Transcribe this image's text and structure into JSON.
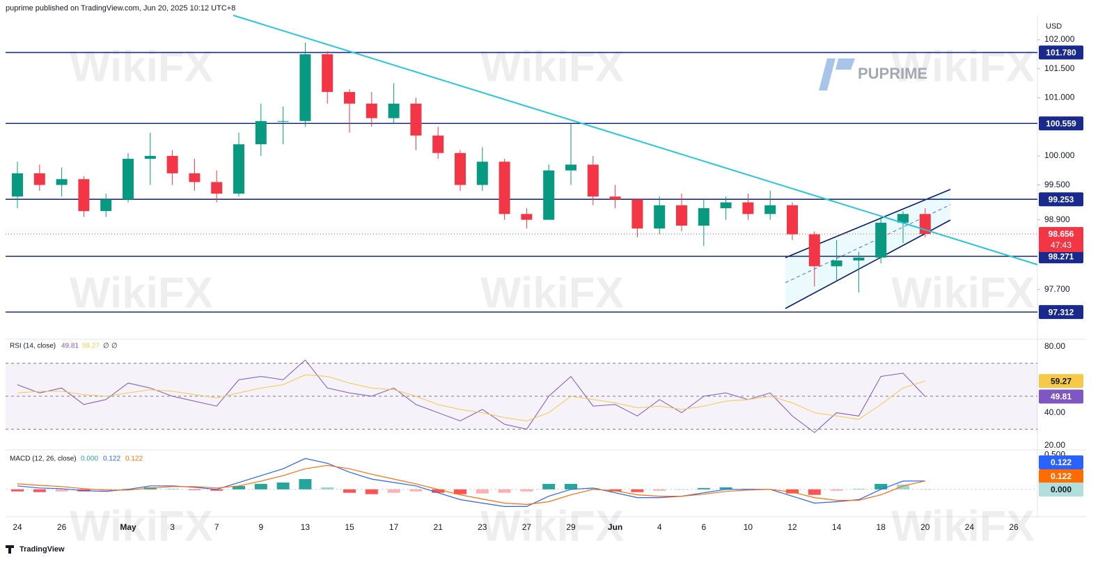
{
  "header": {
    "published": "puprime published on TradingView.com, Jun 20, 2025 10:12 UTC+8",
    "currency": "USD",
    "broker_logo": "PUPRIME",
    "watermark": "WikiFX",
    "footer": "TradingView",
    "countdown": "47:43"
  },
  "chart_data": [
    {
      "type": "candlestick",
      "categories": [
        "24",
        null,
        "26",
        null,
        null,
        "May",
        null,
        "3",
        null,
        "7",
        null,
        "9",
        null,
        "13",
        null,
        "15",
        null,
        "17",
        null,
        "21",
        null,
        "23",
        null,
        "27",
        null,
        "29",
        null,
        "Jun",
        null,
        "4",
        null,
        "6",
        null,
        "10",
        null,
        "12",
        null,
        "14",
        null,
        "18",
        null,
        "20",
        null,
        "24",
        null,
        "26"
      ],
      "open": [
        99.3,
        99.7,
        99.5,
        99.6,
        99.05,
        99.25,
        99.95,
        100.0,
        99.7,
        99.55,
        99.35,
        100.2,
        100.6,
        100.6,
        101.75,
        101.1,
        100.9,
        100.65,
        100.9,
        100.35,
        100.05,
        99.5,
        99.9,
        99.0,
        98.9,
        99.75,
        99.85,
        99.3,
        99.25,
        98.75,
        99.15,
        98.8,
        99.1,
        99.2,
        99.0,
        99.15,
        98.65,
        98.1,
        98.2,
        98.25,
        98.85,
        99.0,
        null,
        null,
        null,
        null
      ],
      "high": [
        99.9,
        99.85,
        99.8,
        99.65,
        99.35,
        100.05,
        100.4,
        100.1,
        99.95,
        99.75,
        100.4,
        100.9,
        100.85,
        101.95,
        101.8,
        101.15,
        101.1,
        101.25,
        101.0,
        100.5,
        100.1,
        100.15,
        99.95,
        99.1,
        99.85,
        100.55,
        100.0,
        99.5,
        99.25,
        99.3,
        99.35,
        99.25,
        99.3,
        99.35,
        99.4,
        99.2,
        98.7,
        98.55,
        98.35,
        98.95,
        99.05,
        99.1,
        null,
        null,
        null,
        null
      ],
      "low": [
        99.1,
        99.4,
        99.3,
        98.95,
        98.95,
        99.2,
        99.5,
        99.5,
        99.4,
        99.2,
        99.3,
        100.0,
        100.2,
        100.5,
        100.9,
        100.4,
        100.5,
        100.55,
        100.1,
        99.95,
        99.4,
        99.4,
        98.9,
        98.75,
        98.9,
        99.5,
        99.15,
        99.1,
        98.6,
        98.65,
        98.7,
        98.45,
        98.9,
        98.9,
        98.9,
        98.55,
        97.75,
        97.85,
        97.65,
        98.15,
        98.5,
        98.6,
        null,
        null,
        null,
        null
      ],
      "close": [
        99.7,
        99.5,
        99.6,
        99.05,
        99.25,
        99.95,
        100.0,
        99.7,
        99.55,
        99.35,
        100.2,
        100.6,
        100.6,
        101.75,
        101.1,
        100.9,
        100.65,
        100.9,
        100.35,
        100.05,
        99.5,
        99.9,
        99.0,
        98.9,
        99.75,
        99.85,
        99.3,
        99.25,
        98.75,
        99.15,
        98.8,
        99.1,
        99.2,
        99.0,
        99.15,
        98.65,
        98.1,
        98.2,
        98.25,
        98.85,
        99.0,
        98.656,
        null,
        null,
        null,
        null
      ],
      "colors": {
        "up": "#089981",
        "down": "#f23645"
      },
      "ylim": [
        96.87,
        102.42
      ],
      "yticks": [
        {
          "value": 102,
          "label": "102.000"
        },
        {
          "value": 101.5,
          "label": "101.500"
        },
        {
          "value": 101,
          "label": "101.000"
        },
        {
          "value": 100,
          "label": "100.000"
        },
        {
          "value": 99.5,
          "label": "99.500"
        },
        {
          "value": 98.9,
          "label": "98.900"
        },
        {
          "value": 97.7,
          "label": "97.700"
        }
      ],
      "levels": [
        {
          "value": 101.78,
          "label": "101.780"
        },
        {
          "value": 100.559,
          "label": "100.559"
        },
        {
          "value": 99.253,
          "label": "99.253"
        },
        {
          "value": 98.271,
          "label": "98.271"
        },
        {
          "value": 97.312,
          "label": "97.312"
        }
      ],
      "level_color": "#1a2a8c"
    },
    {
      "type": "line",
      "title": "RSI (14, close)",
      "legend_extra": [
        "∅",
        "∅"
      ],
      "series": [
        {
          "color": "#7e57c2",
          "values": [
            57,
            52,
            55,
            45,
            48,
            58,
            55,
            50,
            47,
            44,
            60,
            62,
            60,
            72,
            55,
            52,
            50,
            55,
            45,
            40,
            35,
            42,
            33,
            30,
            50,
            62,
            44,
            45,
            38,
            48,
            40,
            50,
            52,
            48,
            52,
            38,
            28,
            40,
            38,
            62,
            64,
            49.81,
            null,
            null,
            null,
            null
          ]
        },
        {
          "color": "#f7c948",
          "values": [
            52,
            53,
            53,
            51,
            50,
            52,
            54,
            53,
            51,
            49,
            52,
            55,
            57,
            63,
            62,
            58,
            55,
            54,
            50,
            45,
            42,
            40,
            37,
            35,
            40,
            50,
            48,
            46,
            43,
            44,
            42,
            44,
            47,
            48,
            50,
            46,
            40,
            38,
            36,
            45,
            55,
            59.27,
            null,
            null,
            null,
            null
          ]
        }
      ],
      "bands": [
        30,
        70
      ],
      "midline": 50,
      "ylim": [
        17.9,
        83.4
      ],
      "yticks": [
        {
          "value": 80,
          "label": "80.00"
        },
        {
          "value": 40,
          "label": "40.00"
        },
        {
          "value": 20,
          "label": "20.00"
        }
      ]
    },
    {
      "type": "combo",
      "title": "MACD (12, 26, close)",
      "series": [
        {
          "type": "bar",
          "color": [
            "#26a69a",
            "#ff5252"
          ],
          "values": [
            -0.03,
            -0.04,
            -0.03,
            -0.03,
            -0.02,
            0.01,
            0.03,
            0.01,
            -0.01,
            -0.02,
            0.05,
            0.08,
            0.1,
            0.15,
            0.03,
            -0.05,
            -0.07,
            -0.05,
            -0.03,
            -0.05,
            -0.07,
            -0.06,
            -0.05,
            -0.03,
            0.08,
            0.08,
            0.02,
            -0.03,
            -0.04,
            -0.02,
            0,
            0.02,
            0.03,
            0.01,
            0,
            -0.06,
            -0.08,
            -0.02,
            0.01,
            0.08,
            0.07,
            0,
            null,
            null,
            null,
            null
          ],
          "value_labels": [
            null,
            null,
            null,
            null,
            null,
            null,
            null,
            null,
            null,
            null,
            null,
            null,
            null,
            null,
            null,
            null,
            null,
            null,
            null,
            null,
            null,
            null,
            null,
            null,
            null,
            null,
            null,
            null,
            null,
            null,
            null,
            null,
            null,
            null,
            null,
            null,
            null,
            null,
            null,
            null,
            null,
            "0.000",
            null,
            null,
            null,
            null
          ]
        },
        {
          "type": "line",
          "color": "#2962ff",
          "values": [
            0.05,
            0.02,
            0.01,
            -0.02,
            -0.03,
            0,
            0.05,
            0.05,
            0.03,
            0,
            0.1,
            0.2,
            0.3,
            0.45,
            0.38,
            0.25,
            0.15,
            0.1,
            0.05,
            -0.05,
            -0.15,
            -0.2,
            -0.25,
            -0.25,
            -0.1,
            0,
            0.02,
            -0.05,
            -0.12,
            -0.12,
            -0.1,
            -0.05,
            0,
            0,
            0,
            -0.1,
            -0.2,
            -0.18,
            -0.15,
            0,
            0.12,
            0.122,
            null,
            null,
            null,
            null
          ]
        },
        {
          "type": "line",
          "color": "#ff6d00",
          "values": [
            0.08,
            0.06,
            0.04,
            0.01,
            -0.01,
            -0.01,
            0.02,
            0.04,
            0.04,
            0.02,
            0.05,
            0.12,
            0.2,
            0.3,
            0.35,
            0.3,
            0.22,
            0.15,
            0.08,
            0,
            -0.08,
            -0.14,
            -0.2,
            -0.22,
            -0.18,
            -0.08,
            0,
            -0.02,
            -0.08,
            -0.1,
            -0.1,
            -0.07,
            -0.03,
            -0.01,
            0,
            -0.04,
            -0.12,
            -0.16,
            -0.16,
            -0.08,
            0.05,
            0.122,
            null,
            null,
            null,
            null
          ]
        }
      ],
      "ylim": [
        -0.378,
        0.556
      ],
      "yticks": [
        {
          "value": 0.5,
          "label": "0.500"
        }
      ]
    }
  ]
}
